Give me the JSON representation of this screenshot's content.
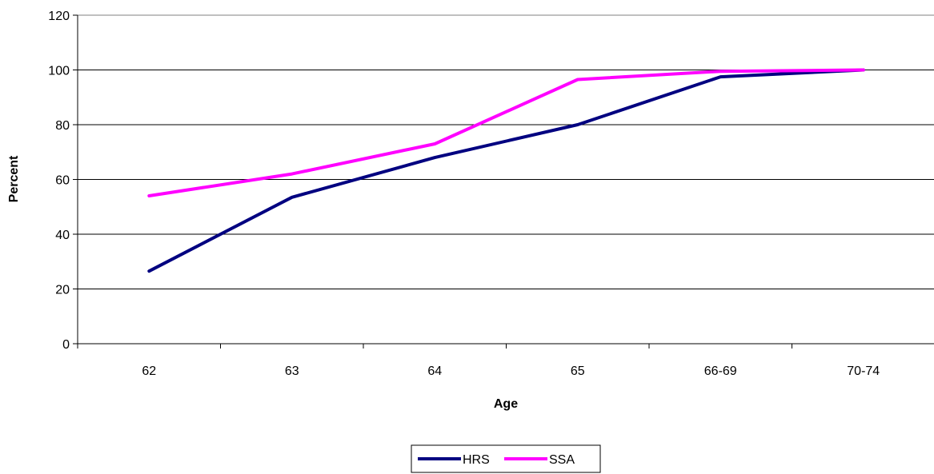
{
  "chart_data": {
    "type": "line",
    "title": "",
    "xlabel": "Age",
    "ylabel": "Percent",
    "categories": [
      "62",
      "63",
      "64",
      "65",
      "66-69",
      "70-74"
    ],
    "ylim": [
      0,
      120
    ],
    "yticks": [
      "0",
      "20",
      "40",
      "60",
      "80",
      "100",
      "120"
    ],
    "grid": "horizontal",
    "legend_position": "bottom",
    "series": [
      {
        "name": "HRS",
        "color": "#000080",
        "values": [
          26.5,
          53.5,
          68,
          80,
          97.5,
          100
        ]
      },
      {
        "name": "SSA",
        "color": "#FF00FF",
        "values": [
          54,
          62,
          73,
          96.5,
          99.5,
          100
        ]
      }
    ]
  }
}
